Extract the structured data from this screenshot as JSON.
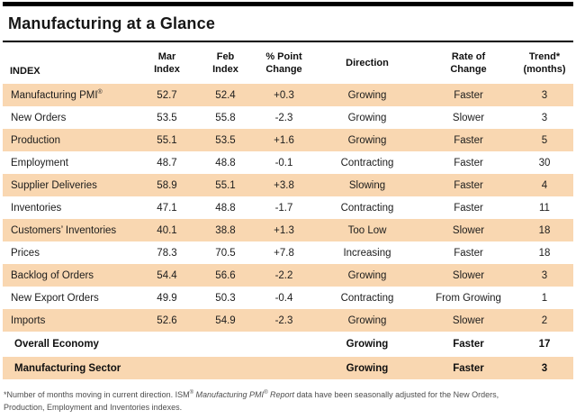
{
  "title": "Manufacturing at a Glance",
  "colors": {
    "row_shade": "#F9D7B1",
    "rule": "#000000",
    "text": "#1A1A1A",
    "footnote_text": "#4D4D4D"
  },
  "table": {
    "headers": {
      "index": "INDEX",
      "mar": {
        "line1": "Mar",
        "line2": "Index"
      },
      "feb": {
        "line1": "Feb",
        "line2": "Index"
      },
      "change": {
        "line1": "% Point",
        "line2": "Change"
      },
      "direction": "Direction",
      "rate": {
        "line1": "Rate of",
        "line2": "Change"
      },
      "trend": {
        "line1": "Trend*",
        "line2": "(months)"
      }
    },
    "rows": [
      {
        "index": "Manufacturing PMI",
        "sup": "®",
        "mar": "52.7",
        "feb": "52.4",
        "change": "+0.3",
        "direction": "Growing",
        "rate": "Faster",
        "trend": "3"
      },
      {
        "index": "New Orders",
        "mar": "53.5",
        "feb": "55.8",
        "change": "-2.3",
        "direction": "Growing",
        "rate": "Slower",
        "trend": "3"
      },
      {
        "index": "Production",
        "mar": "55.1",
        "feb": "53.5",
        "change": "+1.6",
        "direction": "Growing",
        "rate": "Faster",
        "trend": "5"
      },
      {
        "index": "Employment",
        "mar": "48.7",
        "feb": "48.8",
        "change": "-0.1",
        "direction": "Contracting",
        "rate": "Faster",
        "trend": "30"
      },
      {
        "index": "Supplier Deliveries",
        "mar": "58.9",
        "feb": "55.1",
        "change": "+3.8",
        "direction": "Slowing",
        "rate": "Faster",
        "trend": "4"
      },
      {
        "index": "Inventories",
        "mar": "47.1",
        "feb": "48.8",
        "change": "-1.7",
        "direction": "Contracting",
        "rate": "Faster",
        "trend": "11"
      },
      {
        "index": "Customers’ Inventories",
        "mar": "40.1",
        "feb": "38.8",
        "change": "+1.3",
        "direction": "Too Low",
        "rate": "Slower",
        "trend": "18"
      },
      {
        "index": "Prices",
        "mar": "78.3",
        "feb": "70.5",
        "change": "+7.8",
        "direction": "Increasing",
        "rate": "Faster",
        "trend": "18"
      },
      {
        "index": "Backlog of Orders",
        "mar": "54.4",
        "feb": "56.6",
        "change": "-2.2",
        "direction": "Growing",
        "rate": "Slower",
        "trend": "3"
      },
      {
        "index": "New Export Orders",
        "mar": "49.9",
        "feb": "50.3",
        "change": "-0.4",
        "direction": "Contracting",
        "rate": "From Growing",
        "trend": "1"
      },
      {
        "index": "Imports",
        "mar": "52.6",
        "feb": "54.9",
        "change": "-2.3",
        "direction": "Growing",
        "rate": "Slower",
        "trend": "2"
      }
    ],
    "summary_rows": [
      {
        "index": "Overall Economy",
        "direction": "Growing",
        "rate": "Faster",
        "trend": "17"
      },
      {
        "index": "Manufacturing Sector",
        "direction": "Growing",
        "rate": "Faster",
        "trend": "3"
      }
    ]
  },
  "footnote": {
    "line1_part1": "*Number of months moving in current direction. ISM",
    "line1_sup1": "®",
    "line1_italic1": " Manufacturing PMI",
    "line1_sup2": "®",
    "line1_italic2": " Report",
    "line1_part2": " data have been seasonally adjusted for the New Orders,",
    "line2": "Production, Employment and Inventories indexes."
  }
}
